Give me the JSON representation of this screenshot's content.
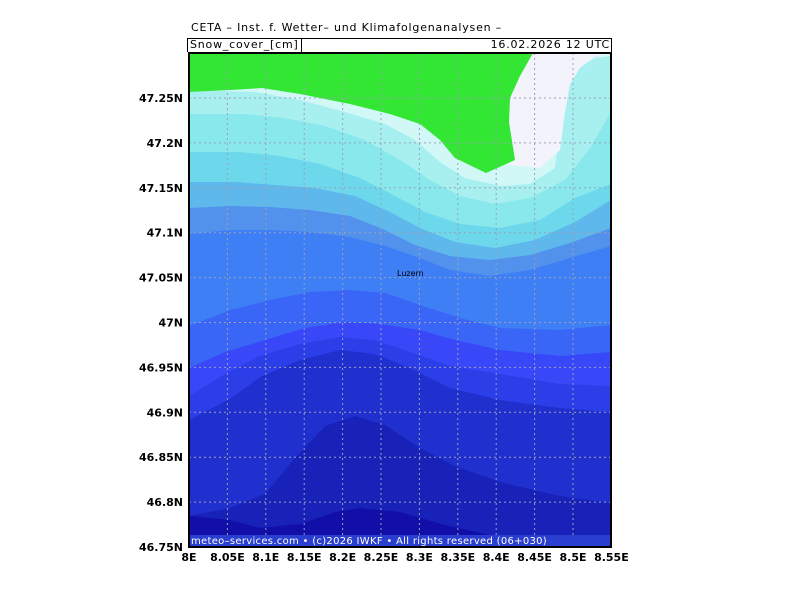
{
  "header": {
    "title": "CETA – Inst. f. Wetter– und Klimafolgenanalysen –",
    "variable": "Snow_cover_[cm]",
    "datetime": "16.02.2026  12 UTC"
  },
  "map": {
    "city_label": "Luzern",
    "copyright": "meteo–services.com • (c)2026 IWKF • All rights reserved (06+030)",
    "x_ticks": [
      "8E",
      "8.05E",
      "8.1E",
      "8.15E",
      "8.2E",
      "8.25E",
      "8.3E",
      "8.35E",
      "8.4E",
      "8.45E",
      "8.5E",
      "8.55E"
    ],
    "y_ticks": [
      "47.25N",
      "47.2N",
      "47.15N",
      "47.1N",
      "47.05N",
      "47N",
      "46.95N",
      "46.9N",
      "46.85N",
      "46.8N",
      "46.75N"
    ],
    "colors": {
      "green": "#33e633",
      "band_1": "#f3f3fc",
      "band_2": "#d2f7f7",
      "band_3": "#a8f0f0",
      "band_4": "#88e8ec",
      "band_5": "#6dd8ec",
      "band_6": "#5eb8ec",
      "band_7": "#5392ec",
      "band_8": "#3e7ff5",
      "band_9": "#3a66f8",
      "band_10": "#3848f8",
      "band_11": "#2c3ee8",
      "band_12": "#2030cf",
      "band_13": "#1822b8",
      "band_14": "#120ea8"
    }
  }
}
